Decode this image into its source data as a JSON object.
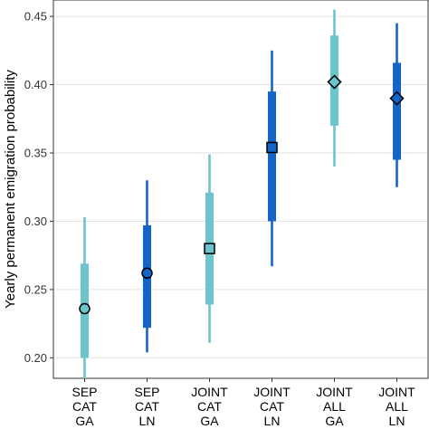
{
  "chart_data": {
    "type": "interval",
    "ylabel": "Yearly permanent emigration probability",
    "ylim": [
      0.185,
      0.462
    ],
    "yticks": [
      0.2,
      0.25,
      0.3,
      0.35,
      0.4,
      0.45
    ],
    "ytick_labels": [
      "0.20",
      "0.25",
      "0.30",
      "0.35",
      "0.40",
      "0.45"
    ],
    "grid": true,
    "categories": [
      {
        "lines": [
          "SEP",
          "CAT",
          "GA"
        ],
        "estimate": 0.236,
        "inner": [
          0.2,
          0.269
        ],
        "outer": [
          0.185,
          0.303
        ],
        "marker": "circle",
        "color": "#6cc4cc"
      },
      {
        "lines": [
          "SEP",
          "CAT",
          "LN"
        ],
        "estimate": 0.262,
        "inner": [
          0.222,
          0.297
        ],
        "outer": [
          0.204,
          0.33
        ],
        "marker": "circle",
        "color": "#1565c8"
      },
      {
        "lines": [
          "JOINT",
          "CAT",
          "GA"
        ],
        "estimate": 0.28,
        "inner": [
          0.239,
          0.321
        ],
        "outer": [
          0.211,
          0.349
        ],
        "marker": "square",
        "color": "#6cc4cc"
      },
      {
        "lines": [
          "JOINT",
          "CAT",
          "LN"
        ],
        "estimate": 0.354,
        "inner": [
          0.3,
          0.395
        ],
        "outer": [
          0.267,
          0.425
        ],
        "marker": "square",
        "color": "#1565c8"
      },
      {
        "lines": [
          "JOINT",
          "ALL",
          "GA"
        ],
        "estimate": 0.402,
        "inner": [
          0.37,
          0.436
        ],
        "outer": [
          0.34,
          0.455
        ],
        "marker": "diamond",
        "color": "#6cc4cc"
      },
      {
        "lines": [
          "JOINT",
          "ALL",
          "LN"
        ],
        "estimate": 0.39,
        "inner": [
          0.345,
          0.416
        ],
        "outer": [
          0.325,
          0.445
        ],
        "marker": "diamond",
        "color": "#1565c8"
      }
    ]
  }
}
